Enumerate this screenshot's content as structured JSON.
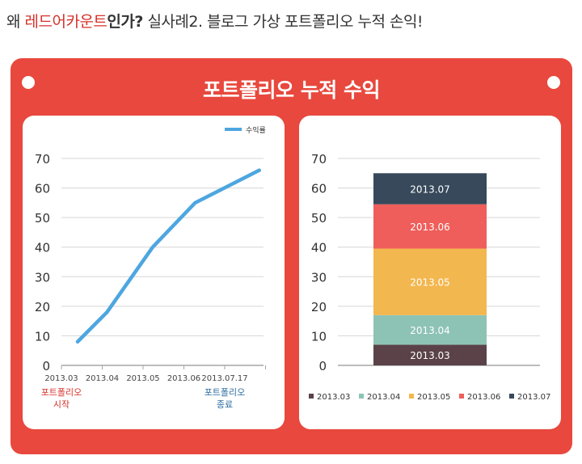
{
  "headline": {
    "prefix": "왜 ",
    "brand": "레드어카운트",
    "suffix": "인가?",
    "rest": " 실사례2. 블로그 가상 포트폴리오 누적 손익!"
  },
  "panel": {
    "title": "포트폴리오 누적 수익"
  },
  "colors": {
    "panel": "#e8483d",
    "line": "#4da6e0",
    "axis_text": "#333333"
  },
  "chart_data": [
    {
      "type": "line",
      "title": "",
      "ylim": [
        0,
        70
      ],
      "yticks": [
        0,
        10,
        20,
        30,
        40,
        50,
        60,
        70
      ],
      "x_labels": [
        "2013.03",
        "2013.04",
        "2013.05",
        "2013.06",
        "2013.07.17"
      ],
      "series": [
        {
          "name": "수익률",
          "x": [
            0,
            1,
            2,
            3,
            4
          ],
          "values": [
            8,
            18,
            40,
            55,
            66
          ]
        }
      ],
      "points": [
        {
          "position": 0,
          "value": 8
        },
        {
          "position": 0.72,
          "value": 18
        },
        {
          "position": 1.84,
          "value": 40
        },
        {
          "position": 2.88,
          "value": 55
        },
        {
          "position": 4.45,
          "value": 66
        }
      ],
      "annotations": [
        {
          "x_index": 0,
          "text": [
            "포트폴리오",
            "시작"
          ],
          "color": "#d6322a"
        },
        {
          "x_index": 4,
          "text": [
            "포트폴리오",
            "종료"
          ],
          "color": "#2a6b9c"
        }
      ],
      "legend": "top-right",
      "grid": true
    },
    {
      "type": "bar",
      "stacked": true,
      "ylim": [
        0,
        70
      ],
      "yticks": [
        0,
        10,
        20,
        30,
        40,
        50,
        60,
        70
      ],
      "segments": [
        {
          "name": "2013.03",
          "start": 0,
          "end": 7,
          "color": "#5a4248"
        },
        {
          "name": "2013.04",
          "start": 7,
          "end": 17,
          "color": "#8dc3b5"
        },
        {
          "name": "2013.05",
          "start": 17,
          "end": 39.5,
          "color": "#f3b74f"
        },
        {
          "name": "2013.06",
          "start": 39.5,
          "end": 54.5,
          "color": "#ef5e5a"
        },
        {
          "name": "2013.07",
          "start": 54.5,
          "end": 65,
          "color": "#37495b"
        }
      ],
      "legend": "bottom",
      "grid": true
    }
  ]
}
